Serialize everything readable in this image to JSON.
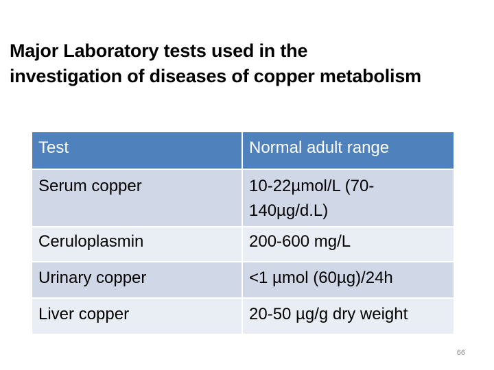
{
  "title": {
    "line1": "Major Laboratory tests used in the",
    "line2": "investigation of  diseases of copper metabolism"
  },
  "table": {
    "headers": [
      "Test",
      "Normal adult range"
    ],
    "rows": [
      {
        "test": "Serum copper",
        "range_line1": "10-22µmol/L (70-",
        "range_line2": "140µg/d.L)"
      },
      {
        "test": "Ceruloplasmin",
        "range": "200-600 mg/L"
      },
      {
        "test": "Urinary copper",
        "range": "<1 µmol (60µg)/24h"
      },
      {
        "test": "Liver copper",
        "range": "20-50 µg/g dry weight"
      }
    ]
  },
  "footer": {
    "page_number": "66"
  },
  "colors": {
    "header_bg": "#4f81bd",
    "row_odd_bg": "#d0d8e8",
    "row_even_bg": "#e9edf4"
  }
}
